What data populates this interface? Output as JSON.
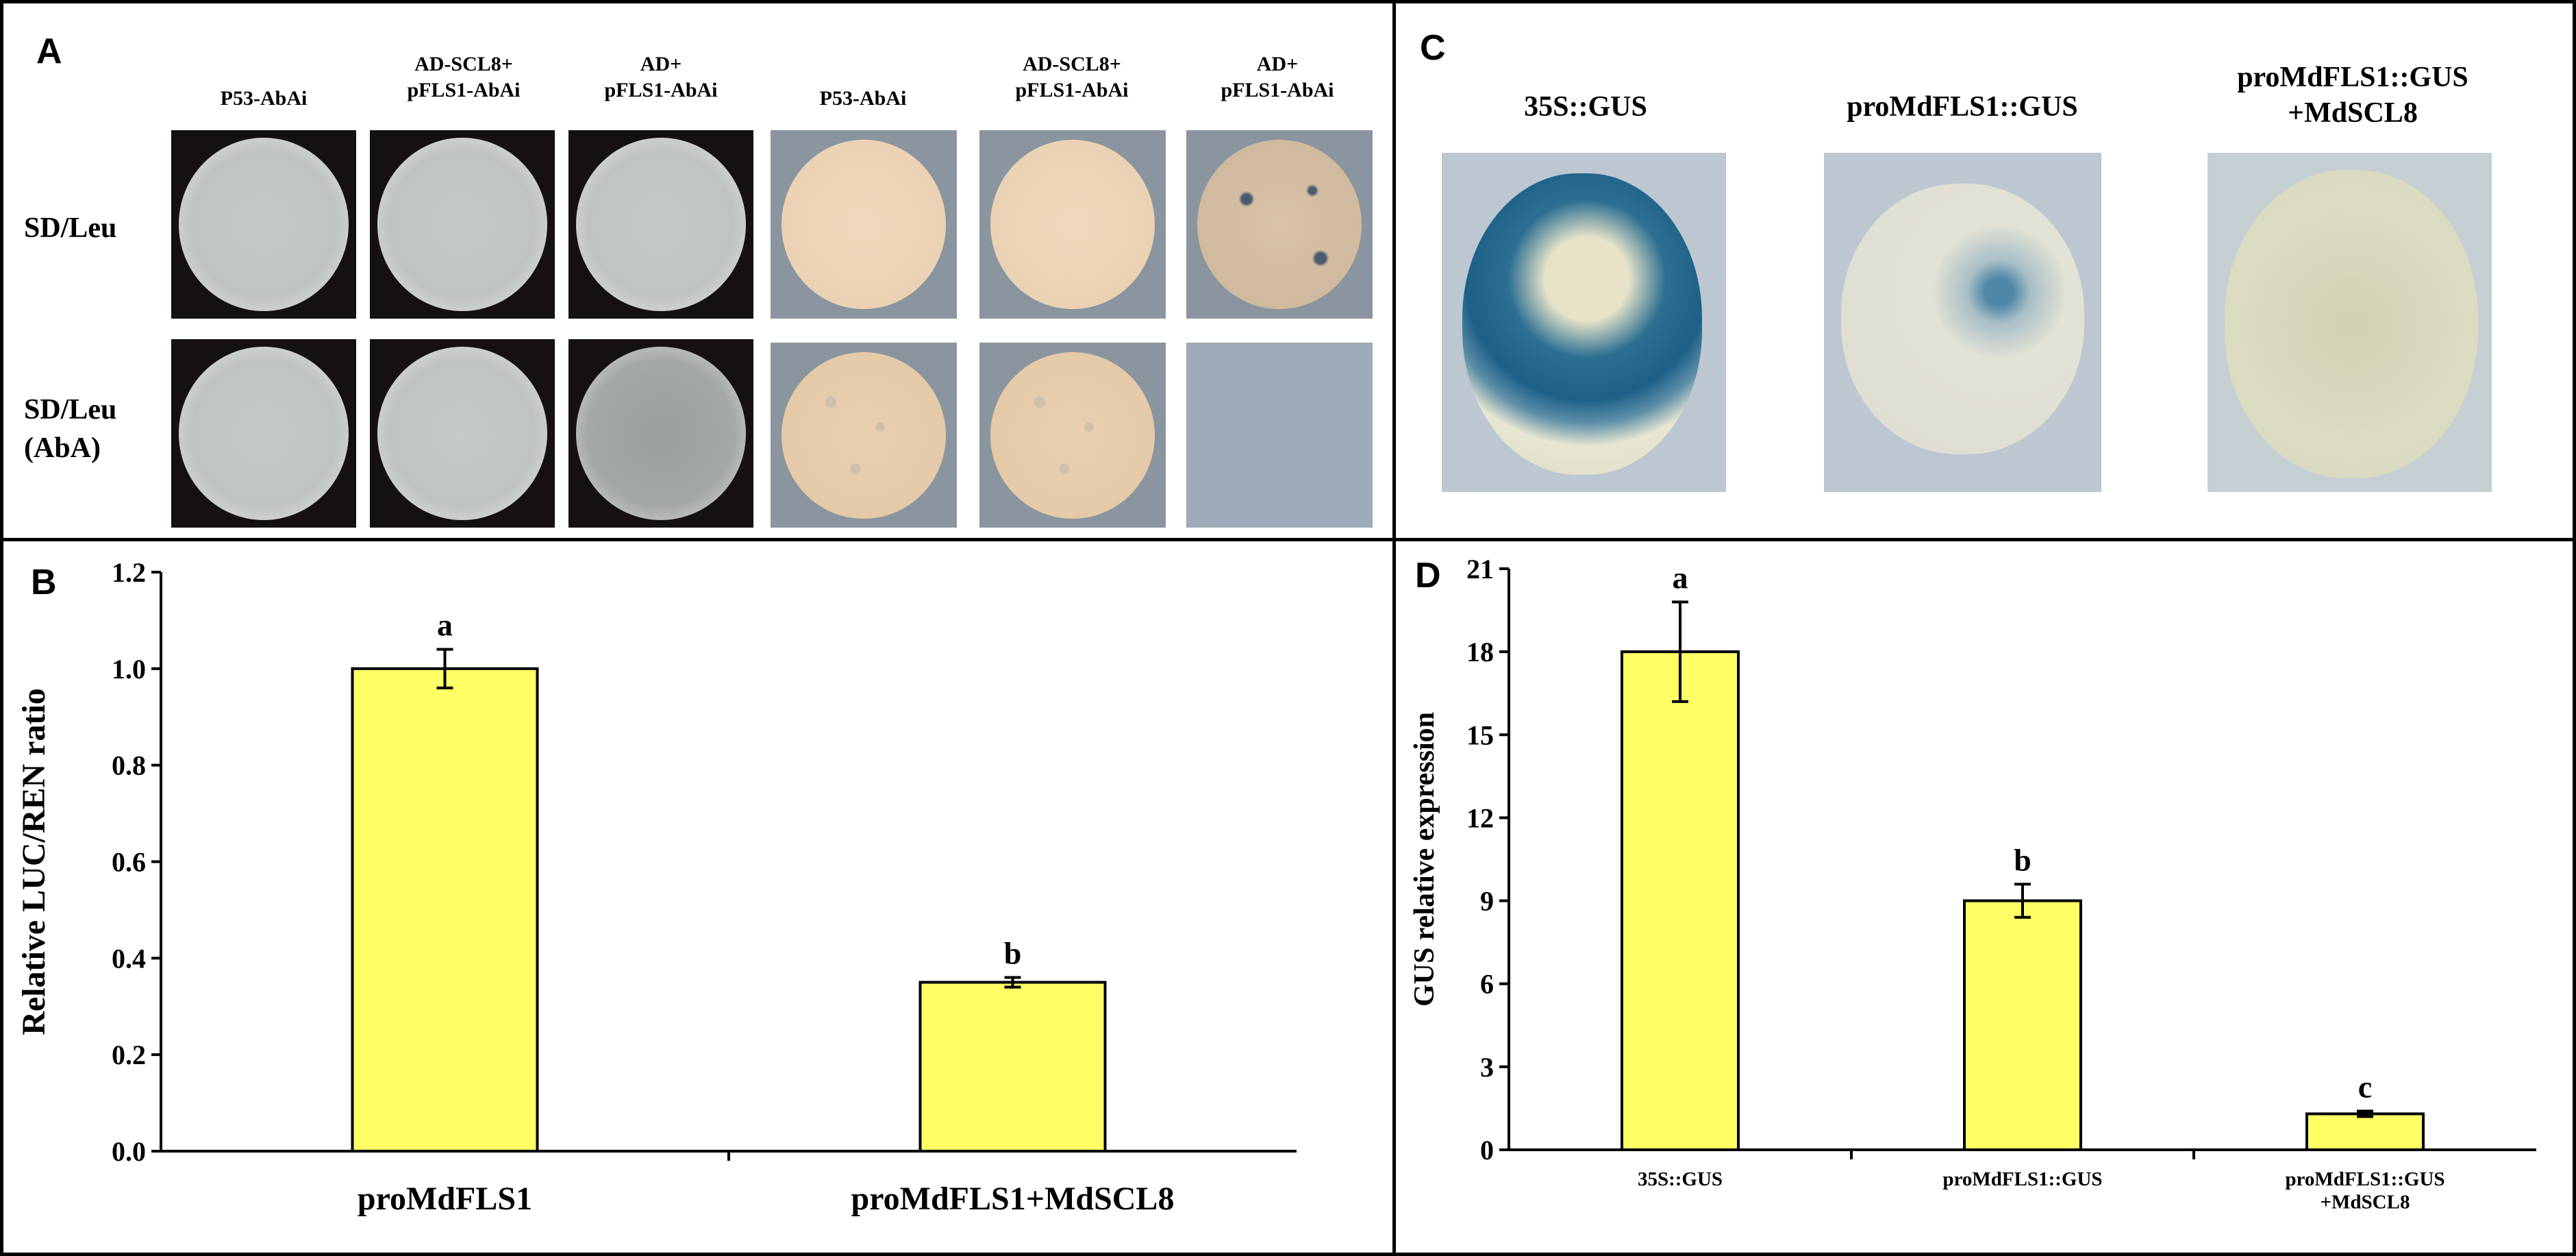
{
  "panels": {
    "a": {
      "letter": "A",
      "columns": [
        "P53-AbAi",
        "AD-SCL8+\npFLS1-AbAi",
        "AD+\npFLS1-AbAi",
        "P53-AbAi",
        "AD-SCL8+\npFLS1-AbAi",
        "AD+\npFLS1-AbAi"
      ],
      "rows": [
        "SD/Leu",
        "SD/Leu\n(AbA)"
      ]
    },
    "b": {
      "letter": "B"
    },
    "c": {
      "letter": "C",
      "columns": [
        "35S::GUS",
        "proMdFLS1::GUS",
        "proMdFLS1::GUS\n+MdSCL8"
      ]
    },
    "d": {
      "letter": "D"
    }
  },
  "colors": {
    "bar_fill": "#ffff66",
    "bar_stroke": "#000000",
    "gus_blue": "#1d5f86"
  },
  "chart_data": [
    {
      "id": "B",
      "type": "bar",
      "categories": [
        "proMdFLS1",
        "proMdFLS1+MdSCL8"
      ],
      "values": [
        1.0,
        0.35
      ],
      "errors": [
        0.04,
        0.01
      ],
      "significance": [
        "a",
        "b"
      ],
      "title": "",
      "xlabel": "",
      "ylabel": "Relative LUC/REN ratio",
      "ylim": [
        0,
        1.2
      ],
      "yticks": [
        "0.0",
        "0.2",
        "0.4",
        "0.6",
        "0.8",
        "1.0",
        "1.2"
      ],
      "grid": false
    },
    {
      "id": "D",
      "type": "bar",
      "categories": [
        "35S::GUS",
        "proMdFLS1::GUS",
        "proMdFLS1::GUS\n+MdSCL8"
      ],
      "values": [
        18.0,
        9.0,
        1.3
      ],
      "errors": [
        1.8,
        0.6,
        0.1
      ],
      "significance": [
        "a",
        "b",
        "c"
      ],
      "title": "",
      "xlabel": "",
      "ylabel": "GUS relative expression",
      "ylim": [
        0,
        21
      ],
      "yticks": [
        "0",
        "3",
        "6",
        "9",
        "12",
        "15",
        "18",
        "21"
      ],
      "grid": false
    }
  ]
}
